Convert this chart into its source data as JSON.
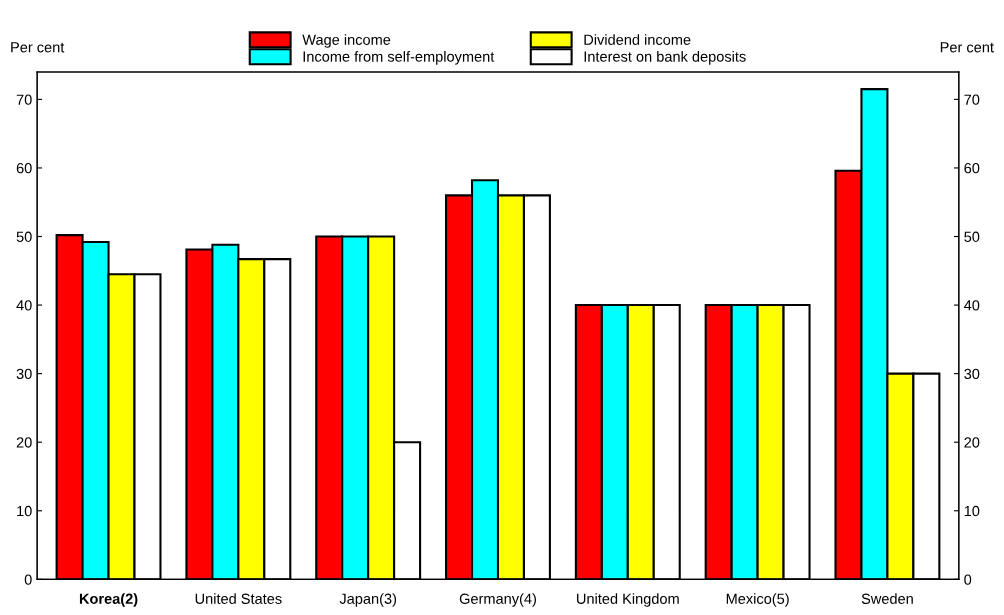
{
  "chart_data": {
    "type": "bar",
    "ylabel": "Per cent",
    "y2label": "Per cent",
    "categories": [
      "Korea(2)",
      "United States",
      "Japan(3)",
      "Germany(4)",
      "United Kingdom",
      "Mexico(5)",
      "Sweden"
    ],
    "series": [
      {
        "name": "Wage income",
        "color": "#ff0000",
        "values": [
          50.2,
          48.1,
          50,
          56,
          40,
          40,
          59.6
        ]
      },
      {
        "name": "Income from self-employment",
        "color": "#00ffff",
        "values": [
          49.2,
          48.8,
          50,
          58.2,
          40,
          40,
          71.5
        ]
      },
      {
        "name": "Dividend income",
        "color": "#ffff00",
        "values": [
          44.5,
          46.7,
          50,
          56,
          40,
          40,
          30
        ]
      },
      {
        "name": "Interest on bank deposits",
        "color": "#ffffff",
        "values": [
          44.5,
          46.7,
          20,
          56,
          40,
          40,
          30
        ]
      }
    ],
    "ylim": [
      0,
      74
    ],
    "yticks": [
      0,
      10,
      20,
      30,
      40,
      50,
      60,
      70
    ],
    "y2lim": [
      0,
      74
    ],
    "y2ticks": [
      0,
      10,
      20,
      30,
      40,
      50,
      60,
      70
    ],
    "grid": false,
    "legend": "top"
  }
}
